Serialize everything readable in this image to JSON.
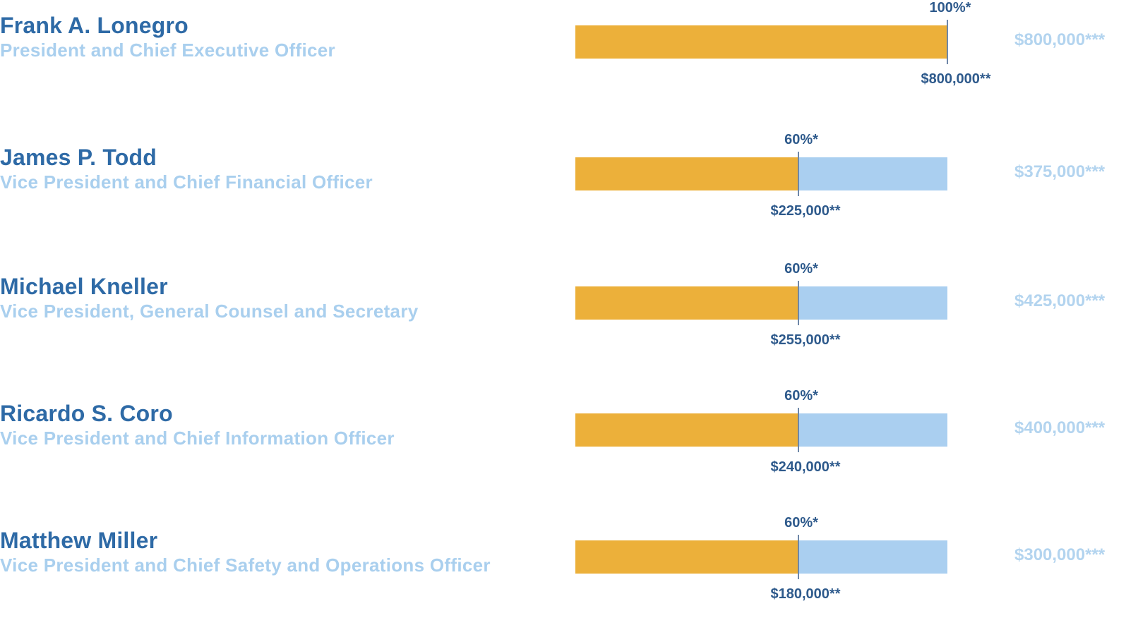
{
  "chart_data": {
    "type": "bar",
    "orientation": "horizontal",
    "categories": [
      "Frank A. Lonegro",
      "James P. Todd",
      "Michael Kneller",
      "Ricardo S. Coro",
      "Matthew Miller"
    ],
    "rows": [
      {
        "name": "Frank A. Lonegro",
        "title": "President and Chief Executive Officer",
        "target_percent": 100,
        "target_percent_label": "100%*",
        "target_amount": 800000,
        "target_amount_label": "$800,000**",
        "max_amount": 800000,
        "max_amount_label": "$800,000***"
      },
      {
        "name": "James P. Todd",
        "title": "Vice President and Chief Financial Officer",
        "target_percent": 60,
        "target_percent_label": "60%*",
        "target_amount": 225000,
        "target_amount_label": "$225,000**",
        "max_amount": 375000,
        "max_amount_label": "$375,000***"
      },
      {
        "name": "Michael Kneller",
        "title": "Vice President, General Counsel and Secretary",
        "target_percent": 60,
        "target_percent_label": "60%*",
        "target_amount": 255000,
        "target_amount_label": "$255,000**",
        "max_amount": 425000,
        "max_amount_label": "$425,000***"
      },
      {
        "name": "Ricardo S. Coro",
        "title": "Vice President and Chief Information Officer",
        "target_percent": 60,
        "target_percent_label": "60%*",
        "target_amount": 240000,
        "target_amount_label": "$240,000**",
        "max_amount": 400000,
        "max_amount_label": "$400,000***"
      },
      {
        "name": "Matthew Miller",
        "title": "Vice President and Chief Safety and Operations Officer",
        "target_percent": 60,
        "target_percent_label": "60%*",
        "target_amount": 180000,
        "target_amount_label": "$180,000**",
        "max_amount": 300000,
        "max_amount_label": "$300,000***"
      }
    ],
    "xlim": [
      0,
      100
    ],
    "legend": "none",
    "grid": false
  },
  "colors": {
    "filled": "#ecb03a",
    "remaining": "#aacff0",
    "name": "#2e6aa6",
    "title": "#a9cfee",
    "label": "#2e5a8c",
    "max_label": "#b3d4ef",
    "marker": "#6e87a8"
  }
}
